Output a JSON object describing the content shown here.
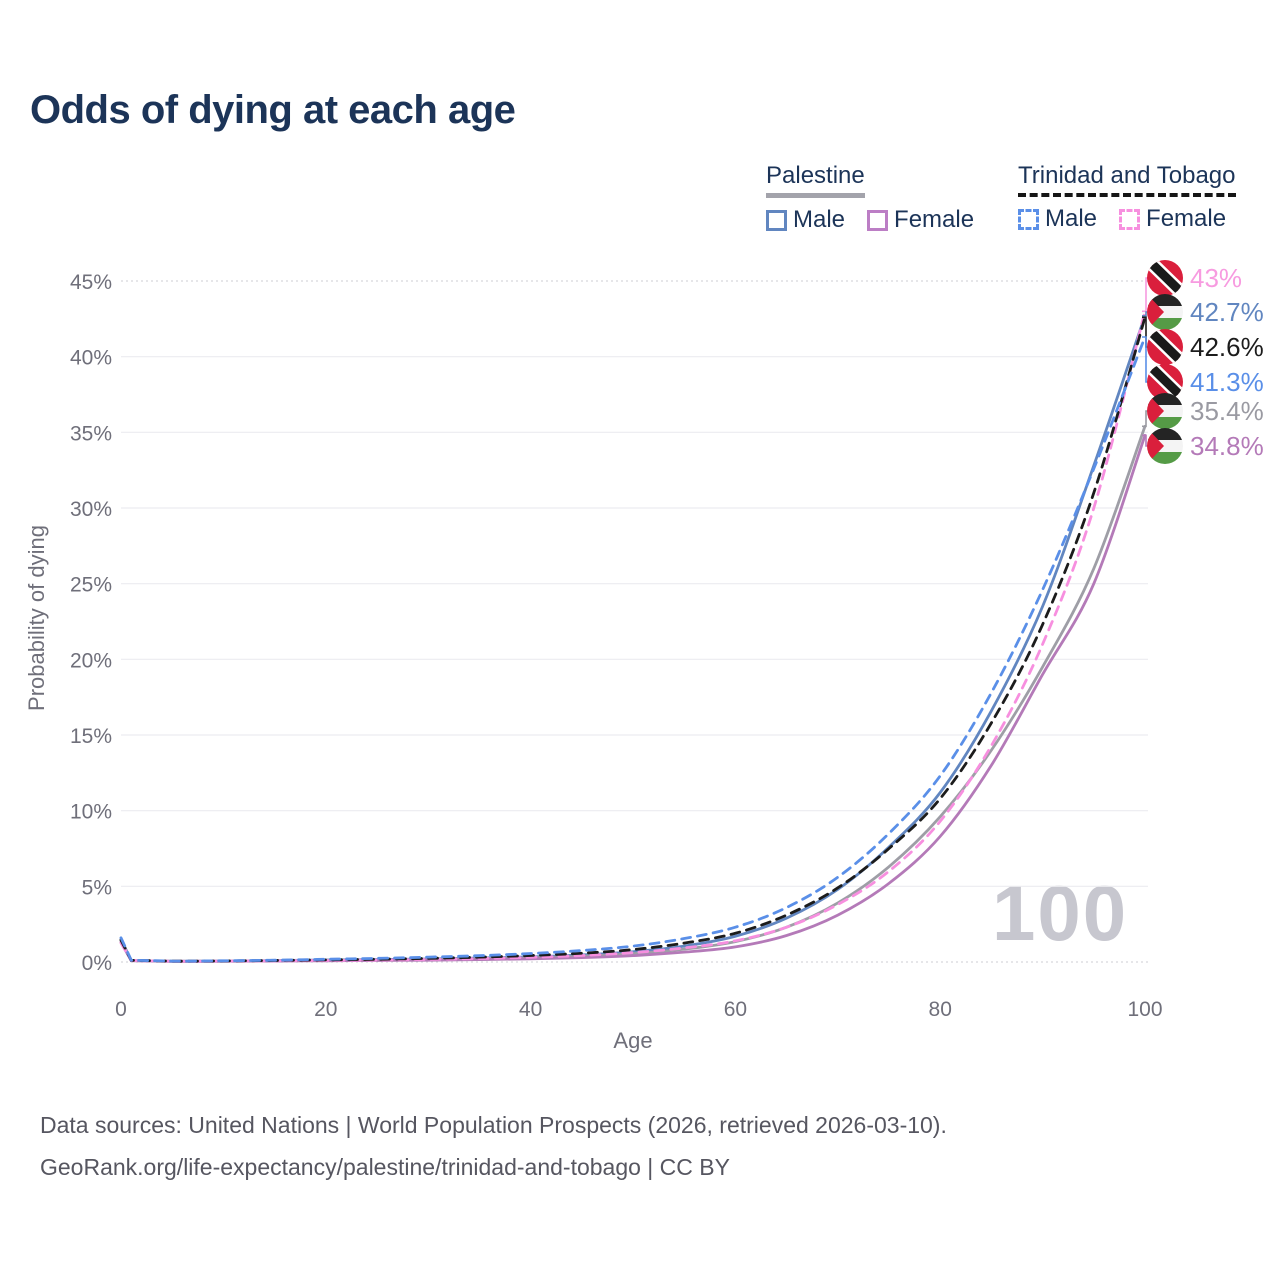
{
  "header": {
    "title": "Odds of dying at each age"
  },
  "legend": {
    "groups": [
      {
        "name": "Palestine",
        "underline_style": "solid",
        "underline_color": "#a3a3ab",
        "items": [
          {
            "label": "Male",
            "line_style": "solid",
            "color": "#6186c0"
          },
          {
            "label": "Female",
            "line_style": "solid",
            "color": "#bc7ec5"
          }
        ]
      },
      {
        "name": "Trinidad and Tobago",
        "underline_style": "dashed",
        "underline_color": "#161616",
        "items": [
          {
            "label": "Male",
            "line_style": "dashed",
            "color": "#5a8fe8"
          },
          {
            "label": "Female",
            "line_style": "dashed",
            "color": "#f78fdf"
          }
        ]
      }
    ]
  },
  "chart_data": {
    "type": "line",
    "title": "Odds of dying at each age",
    "xlabel": "Age",
    "ylabel": "Probability of dying",
    "xlim": [
      0,
      100
    ],
    "ylim": [
      0,
      45
    ],
    "x_ticks": [
      0,
      20,
      40,
      60,
      80,
      100
    ],
    "y_ticks": [
      0,
      5,
      10,
      15,
      20,
      25,
      30,
      35,
      40,
      45
    ],
    "y_tick_suffix": "%",
    "grid": "horizontal",
    "legend_position": "top-right",
    "watermark": "100",
    "x": [
      0,
      1,
      5,
      10,
      15,
      20,
      25,
      30,
      35,
      40,
      45,
      50,
      55,
      60,
      65,
      70,
      75,
      80,
      85,
      90,
      95,
      100
    ],
    "series": [
      {
        "name": "Trinidad and Tobago — Female",
        "country": "Trinidad and Tobago",
        "sex": "Female",
        "line_style": "dashed",
        "color": "#f78fdf",
        "flag": "trinidad-and-tobago",
        "end_label": "43%",
        "end_label_color": "#f79be0",
        "values": [
          1.25,
          0.1,
          0.05,
          0.06,
          0.08,
          0.1,
          0.13,
          0.17,
          0.23,
          0.31,
          0.43,
          0.62,
          0.93,
          1.4,
          2.3,
          3.8,
          6.0,
          9.3,
          14.3,
          21.0,
          30.0,
          43.0
        ]
      },
      {
        "name": "Palestine — Male",
        "country": "Palestine",
        "sex": "Male",
        "line_style": "solid",
        "color": "#6186c0",
        "flag": "palestine",
        "end_label": "42.7%",
        "end_label_color": "#6186c0",
        "values": [
          1.5,
          0.1,
          0.05,
          0.06,
          0.09,
          0.13,
          0.16,
          0.2,
          0.26,
          0.34,
          0.47,
          0.68,
          1.05,
          1.7,
          2.9,
          4.8,
          7.6,
          11.2,
          16.6,
          23.5,
          32.8,
          42.7
        ]
      },
      {
        "name": "Trinidad and Tobago — Both sexes",
        "country": "Trinidad and Tobago",
        "sex": "Both",
        "line_style": "dashed",
        "color": "#1c1c1c",
        "flag": "trinidad-and-tobago",
        "end_label": "42.6%",
        "end_label_color": "#1c1c1c",
        "values": [
          1.45,
          0.11,
          0.055,
          0.07,
          0.1,
          0.14,
          0.18,
          0.24,
          0.32,
          0.43,
          0.58,
          0.82,
          1.25,
          1.9,
          3.1,
          4.9,
          7.5,
          10.8,
          15.8,
          22.3,
          31.0,
          42.6
        ]
      },
      {
        "name": "Trinidad and Tobago — Male",
        "country": "Trinidad and Tobago",
        "sex": "Male",
        "line_style": "dashed",
        "color": "#5a8fe8",
        "flag": "trinidad-and-tobago",
        "end_label": "41.3%",
        "end_label_color": "#5a8fe8",
        "values": [
          1.6,
          0.12,
          0.06,
          0.08,
          0.12,
          0.18,
          0.24,
          0.32,
          0.42,
          0.56,
          0.76,
          1.05,
          1.55,
          2.3,
          3.6,
          5.6,
          8.5,
          12.3,
          17.8,
          24.6,
          32.6,
          41.3
        ]
      },
      {
        "name": "Palestine — Both sexes",
        "country": "Palestine",
        "sex": "Both",
        "line_style": "solid",
        "color": "#9e9ea6",
        "flag": "palestine",
        "end_label": "35.4%",
        "end_label_color": "#9a9aa2",
        "values": [
          1.4,
          0.09,
          0.045,
          0.055,
          0.08,
          0.11,
          0.13,
          0.16,
          0.21,
          0.28,
          0.38,
          0.55,
          0.85,
          1.35,
          2.3,
          3.9,
          6.3,
          9.6,
          14.0,
          19.5,
          26.0,
          35.4
        ]
      },
      {
        "name": "Palestine — Female",
        "country": "Palestine",
        "sex": "Female",
        "line_style": "solid",
        "color": "#b47ab8",
        "flag": "palestine",
        "end_label": "34.8%",
        "end_label_color": "#b47ab8",
        "values": [
          1.3,
          0.08,
          0.04,
          0.05,
          0.06,
          0.08,
          0.1,
          0.12,
          0.16,
          0.21,
          0.29,
          0.42,
          0.65,
          1.0,
          1.75,
          3.1,
          5.2,
          8.3,
          13.0,
          19.0,
          25.0,
          34.8
        ]
      }
    ]
  },
  "source": {
    "line1": "Data sources: United Nations | World Population Prospects (2026, retrieved 2026-03-10).",
    "line2": "GeoRank.org/life-expectancy/palestine/trinidad-and-tobago | CC BY"
  }
}
